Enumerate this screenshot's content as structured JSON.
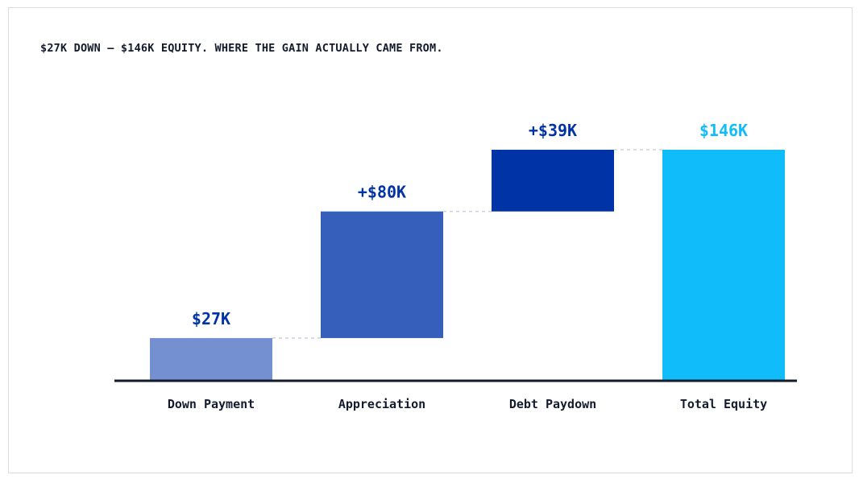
{
  "chart_data": {
    "type": "bar",
    "subtype": "waterfall",
    "title": "$27K DOWN — $146K EQUITY. WHERE THE GAIN ACTUALLY CAME FROM.",
    "categories": [
      "Down Payment",
      "Appreciation",
      "Debt Paydown",
      "Total Equity"
    ],
    "values": [
      27,
      80,
      39,
      146
    ],
    "kinds": [
      "start",
      "delta",
      "delta",
      "total"
    ],
    "data_labels": [
      "$27K",
      "+$80K",
      "+$39K",
      "$146K"
    ],
    "ylim": [
      0,
      146
    ],
    "grid": false,
    "legend": "none",
    "colors": [
      "#7490d0",
      "#365fbb",
      "#0033a6",
      "#11bcfb"
    ],
    "label_colors": [
      "#0033a6",
      "#0033a6",
      "#0033a6",
      "#11bcfb"
    ],
    "connector_color": "#c9d1e3",
    "axis_color": "#141b2d"
  }
}
